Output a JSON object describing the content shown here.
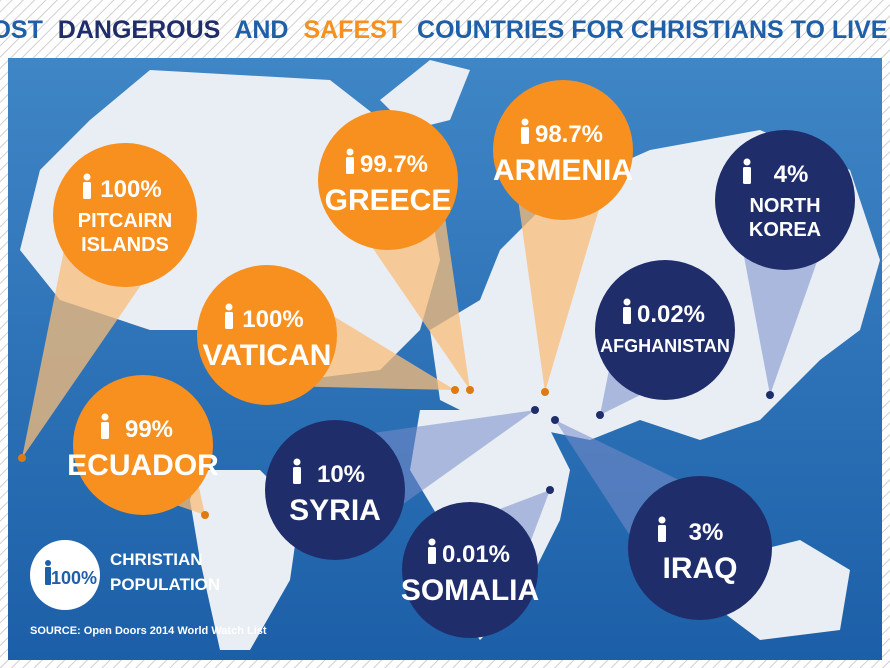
{
  "title": {
    "parts": [
      "MOST",
      "DANGEROUS",
      "AND",
      "SAFEST",
      "COUNTRIES FOR CHRISTIANS TO LIVE IN"
    ]
  },
  "bubbles": [
    {
      "percent": "100%",
      "name": [
        "PITCAIRN",
        "ISLANDS"
      ],
      "group": "safe"
    },
    {
      "percent": "99.7%",
      "name": [
        "GREECE"
      ],
      "group": "safe"
    },
    {
      "percent": "98.7%",
      "name": [
        "ARMENIA"
      ],
      "group": "safe"
    },
    {
      "percent": "4%",
      "name": [
        "NORTH",
        "KOREA"
      ],
      "group": "dangerous"
    },
    {
      "percent": "100%",
      "name": [
        "VATICAN"
      ],
      "group": "safe"
    },
    {
      "percent": "0.02%",
      "name": [
        "AFGHANISTAN"
      ],
      "group": "dangerous"
    },
    {
      "percent": "99%",
      "name": [
        "ECUADOR"
      ],
      "group": "safe"
    },
    {
      "percent": "10%",
      "name": [
        "SYRIA"
      ],
      "group": "dangerous"
    },
    {
      "percent": "0.01%",
      "name": [
        "SOMALIA"
      ],
      "group": "dangerous"
    },
    {
      "percent": "3%",
      "name": [
        "IRAQ"
      ],
      "group": "dangerous"
    }
  ],
  "legend": {
    "percent": "100%",
    "label": [
      "CHRISTIAN",
      "POPULATION"
    ]
  },
  "source": "SOURCE: Open Doors 2014 World Watch List"
}
